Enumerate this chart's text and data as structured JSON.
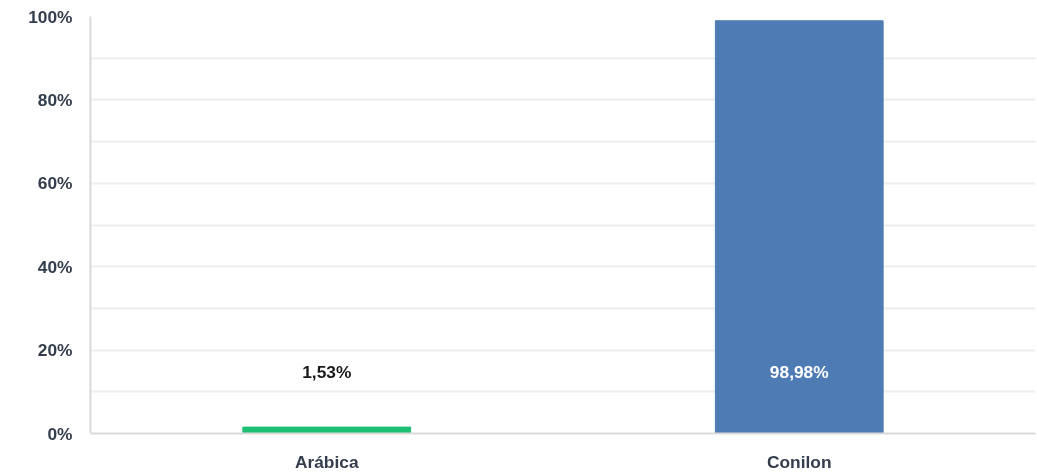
{
  "chart_data": {
    "type": "bar",
    "categories": [
      "Arábica",
      "Conilon"
    ],
    "values": [
      1.53,
      98.98
    ],
    "colors": [
      "#1dbf73",
      "#4f7bb4"
    ],
    "value_labels": [
      "1,53%",
      "98,98%"
    ],
    "ylim": [
      0,
      100
    ],
    "yticks": [
      {
        "value": 0,
        "label": "0%"
      },
      {
        "value": 10,
        "label": null
      },
      {
        "value": 20,
        "label": "20%"
      },
      {
        "value": 30,
        "label": null
      },
      {
        "value": 40,
        "label": "40%"
      },
      {
        "value": 50,
        "label": null
      },
      {
        "value": 60,
        "label": "60%"
      },
      {
        "value": 70,
        "label": null
      },
      {
        "value": 80,
        "label": "80%"
      },
      {
        "value": 90,
        "label": null
      },
      {
        "value": 100,
        "label": "100%"
      }
    ],
    "grid": "y"
  }
}
